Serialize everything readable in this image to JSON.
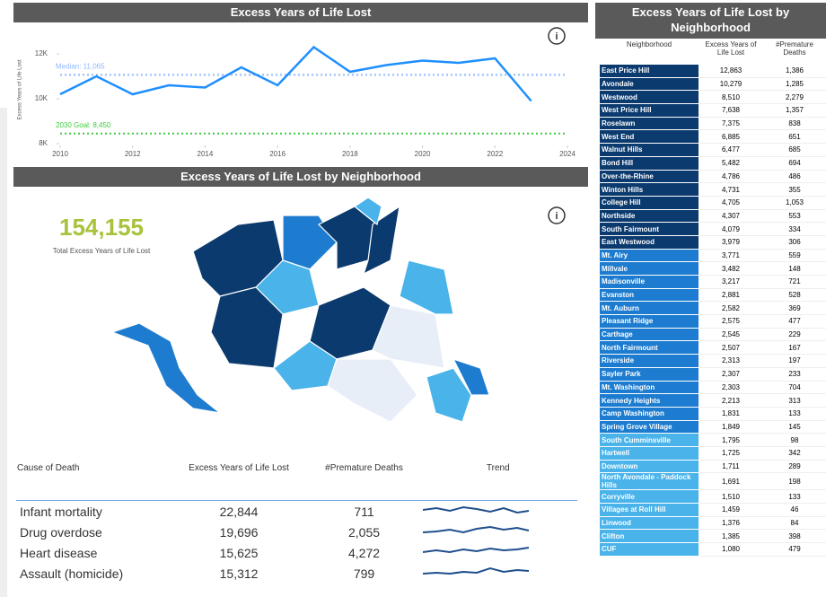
{
  "chart_data": {
    "type": "line",
    "title": "Excess Years of Life Lost",
    "y_label": "Excess Years of Life Lost",
    "x": [
      2010,
      2011,
      2012,
      2013,
      2014,
      2015,
      2016,
      2017,
      2018,
      2019,
      2020,
      2021,
      2022,
      2023
    ],
    "series": [
      {
        "name": "Excess Years of Life Lost",
        "color": "#1f8fff",
        "values": [
          10200,
          11000,
          10200,
          10600,
          10500,
          11400,
          10600,
          12300,
          11200,
          11500,
          11700,
          11600,
          11800,
          9900
        ]
      }
    ],
    "xlim": [
      2010,
      2024
    ],
    "xticks": [
      2010,
      2012,
      2014,
      2016,
      2018,
      2020,
      2022,
      2024
    ],
    "ylim": [
      8000,
      12600
    ],
    "yticks": [
      {
        "value": 8000,
        "label": "8K"
      },
      {
        "value": 10000,
        "label": "10K"
      },
      {
        "value": 12000,
        "label": "12K"
      }
    ],
    "reference_lines": [
      {
        "label": "Median: 11,065",
        "value": 11065,
        "color": "#8fb8ff"
      },
      {
        "label": "2030 Goal: 8,450",
        "value": 8450,
        "color": "#3fcc3f"
      }
    ]
  },
  "map": {
    "title": "Excess Years of Life Lost by Neighborhood",
    "kpi": "154,155",
    "kpi_label": "Total Excess Years of Life Lost"
  },
  "causes": {
    "header": [
      "Cause of Death",
      "Excess Years of Life Lost",
      "#Premature Deaths",
      "Trend"
    ],
    "rows": [
      [
        "Infant mortality",
        "22,844",
        "711"
      ],
      [
        "Drug overdose",
        "19,696",
        "2,055"
      ],
      [
        "Heart disease",
        "15,625",
        "4,272"
      ],
      [
        "Assault (homicide)",
        "15,312",
        "799"
      ]
    ]
  },
  "neighborhoods": {
    "title": "Excess Years of Life Lost by Neighborhood",
    "header": [
      "Neighborhood",
      "Excess Years of Life Lost",
      "#Premature Deaths"
    ],
    "rows": [
      [
        "East Price Hill",
        "12,863",
        "1,386"
      ],
      [
        "Avondale",
        "10,279",
        "1,285"
      ],
      [
        "Westwood",
        "8,510",
        "2,279"
      ],
      [
        "West Price Hill",
        "7,638",
        "1,357"
      ],
      [
        "Roselawn",
        "7,375",
        "838"
      ],
      [
        "West End",
        "6,885",
        "651"
      ],
      [
        "Walnut Hills",
        "6,477",
        "685"
      ],
      [
        "Bond Hill",
        "5,482",
        "694"
      ],
      [
        "Over-the-Rhine",
        "4,786",
        "486"
      ],
      [
        "Winton Hills",
        "4,731",
        "355"
      ],
      [
        "College Hill",
        "4,705",
        "1,053"
      ],
      [
        "Northside",
        "4,307",
        "553"
      ],
      [
        "South Fairmount",
        "4,079",
        "334"
      ],
      [
        "East Westwood",
        "3,979",
        "306"
      ],
      [
        "Mt. Airy",
        "3,771",
        "559"
      ],
      [
        "Millvale",
        "3,482",
        "148"
      ],
      [
        "Madisonville",
        "3,217",
        "721"
      ],
      [
        "Evanston",
        "2,881",
        "528"
      ],
      [
        "Mt. Auburn",
        "2,582",
        "369"
      ],
      [
        "Pleasant Ridge",
        "2,575",
        "477"
      ],
      [
        "Carthage",
        "2,545",
        "229"
      ],
      [
        "North Fairmount",
        "2,507",
        "167"
      ],
      [
        "Riverside",
        "2,313",
        "197"
      ],
      [
        "Sayler Park",
        "2,307",
        "233"
      ],
      [
        "Mt. Washington",
        "2,303",
        "704"
      ],
      [
        "Kennedy Heights",
        "2,213",
        "313"
      ],
      [
        "Camp Washington",
        "1,831",
        "133"
      ],
      [
        "Spring Grove Village",
        "1,849",
        "145"
      ],
      [
        "South Cumminsville",
        "1,795",
        "98"
      ],
      [
        "Hartwell",
        "1,725",
        "342"
      ],
      [
        "Downtown",
        "1,711",
        "289"
      ],
      [
        "North Avondale - Paddock Hills",
        "1,691",
        "198"
      ],
      [
        "Corryville",
        "1,510",
        "133"
      ],
      [
        "Villages at Roll Hill",
        "1,459",
        "46"
      ],
      [
        "Linwood",
        "1,376",
        "84"
      ],
      [
        "Clifton",
        "1,385",
        "398"
      ],
      [
        "CUF",
        "1,080",
        "479"
      ]
    ]
  }
}
